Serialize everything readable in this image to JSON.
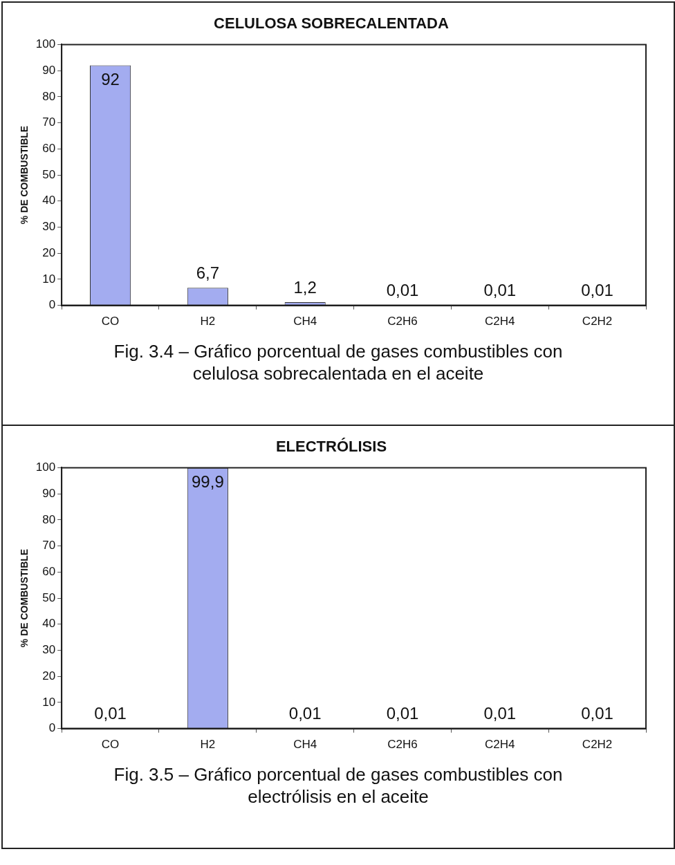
{
  "chart_data": [
    {
      "type": "bar",
      "title": "CELULOSA SOBRECALENTADA",
      "ylabel": "% DE COMBUSTIBLE",
      "categories": [
        "CO",
        "H2",
        "CH4",
        "C2H6",
        "C2H4",
        "C2H2"
      ],
      "values": [
        92,
        6.7,
        1.2,
        0.01,
        0.01,
        0.01
      ],
      "value_labels": [
        "92",
        "6,7",
        "1,2",
        "0,01",
        "0,01",
        "0,01"
      ],
      "color": "#a3acf0",
      "ylim": [
        0,
        100
      ],
      "yticks": [
        0,
        10,
        20,
        30,
        40,
        50,
        60,
        70,
        80,
        90,
        100
      ],
      "grid": false,
      "legend": false,
      "annotations": [
        "Fig. 3.4 – Gráfico porcentual de gases combustibles con celulosa sobrecalentada en el aceite"
      ]
    },
    {
      "type": "bar",
      "title": "ELECTRÓLISIS",
      "ylabel": "% DE COMBUSTIBLE",
      "categories": [
        "CO",
        "H2",
        "CH4",
        "C2H6",
        "C2H4",
        "C2H2"
      ],
      "values": [
        0.01,
        99.9,
        0.01,
        0.01,
        0.01,
        0.01
      ],
      "value_labels": [
        "0,01",
        "99,9",
        "0,01",
        "0,01",
        "0,01",
        "0,01"
      ],
      "color": "#a3acf0",
      "ylim": [
        0,
        100
      ],
      "yticks": [
        0,
        10,
        20,
        30,
        40,
        50,
        60,
        70,
        80,
        90,
        100
      ],
      "grid": false,
      "legend": false,
      "annotations": [
        "Fig. 3.5 – Gráfico porcentual de gases combustibles con electrólisis en el aceite"
      ]
    }
  ]
}
